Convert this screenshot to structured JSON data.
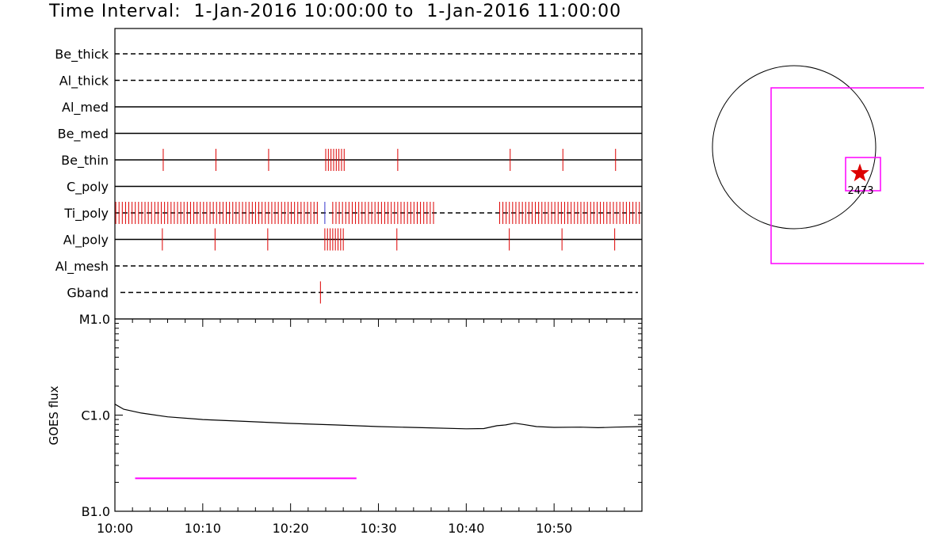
{
  "title": "Time Interval:  1-Jan-2016 10:00:00 to  1-Jan-2016 11:00:00",
  "colors": {
    "axes": "#000000",
    "events": "#dd0000",
    "accent": "#ff00ff",
    "blue_event": "#3333cc"
  },
  "chart_data": [
    {
      "type": "timeline",
      "x_range": [
        "10:00",
        "11:00"
      ],
      "rows": [
        {
          "name": "Be_thick",
          "line": "dashed",
          "events_min": []
        },
        {
          "name": "Al_thick",
          "line": "dashed",
          "events_min": []
        },
        {
          "name": "Al_med",
          "line": "solid",
          "events_min": []
        },
        {
          "name": "Be_med",
          "line": "solid",
          "events_min": []
        },
        {
          "name": "Be_thin",
          "line": "solid",
          "events_min": [
            5.5,
            11.5,
            17.5,
            24.0,
            24.3,
            24.6,
            24.9,
            25.2,
            25.5,
            25.8,
            26.1,
            32.2,
            45.0,
            51.0,
            57.0
          ]
        },
        {
          "name": "C_poly",
          "line": "solid",
          "events_min": []
        },
        {
          "name": "Ti_poly",
          "line": "dashed",
          "event_spans_min": [
            [
              0.1,
              23.3,
              0.37
            ],
            [
              24.8,
              36.6,
              0.37
            ],
            [
              43.8,
              59.8,
              0.37
            ]
          ],
          "highlight_events_min": [
            23.9
          ]
        },
        {
          "name": "Al_poly",
          "line": "solid",
          "events_min": [
            5.4,
            11.4,
            17.4,
            23.9,
            24.2,
            24.5,
            24.8,
            25.1,
            25.4,
            25.7,
            26.0,
            32.1,
            44.9,
            50.9,
            56.9
          ]
        },
        {
          "name": "Al_mesh",
          "line": "dashed",
          "events_min": []
        },
        {
          "name": "Gband",
          "line": "dashed",
          "events_min": [
            23.4
          ]
        }
      ]
    },
    {
      "type": "line",
      "ylabel": "GOES flux",
      "y_ticks": [
        "B1.0",
        "C1.0",
        "M1.0"
      ],
      "yscale": "log",
      "ylim": [
        1e-07,
        1e-05
      ],
      "x_ticks": [
        "10:00",
        "10:10",
        "10:20",
        "10:30",
        "10:40",
        "10:50"
      ],
      "x_range_min": [
        0,
        60
      ],
      "series": [
        {
          "x_min": [
            0,
            1,
            3,
            6,
            10,
            15,
            20,
            25,
            30,
            35,
            40,
            42,
            43.5,
            44.5,
            45.5,
            46.5,
            48,
            50,
            53,
            55,
            57,
            60
          ],
          "y_flux": [
            1.3e-06,
            1.15e-06,
            1.05e-06,
            9.6e-07,
            9e-07,
            8.6e-07,
            8.2e-07,
            7.9e-07,
            7.6e-07,
            7.4e-07,
            7.2e-07,
            7.25e-07,
            7.75e-07,
            7.9e-07,
            8.25e-07,
            8e-07,
            7.6e-07,
            7.45e-07,
            7.5e-07,
            7.4e-07,
            7.5e-07,
            7.6e-07
          ]
        }
      ],
      "interval_bar_min": [
        2.3,
        27.5
      ],
      "interval_bar_flux": 2.2e-07
    },
    {
      "type": "sun_map",
      "label": "2473"
    }
  ]
}
